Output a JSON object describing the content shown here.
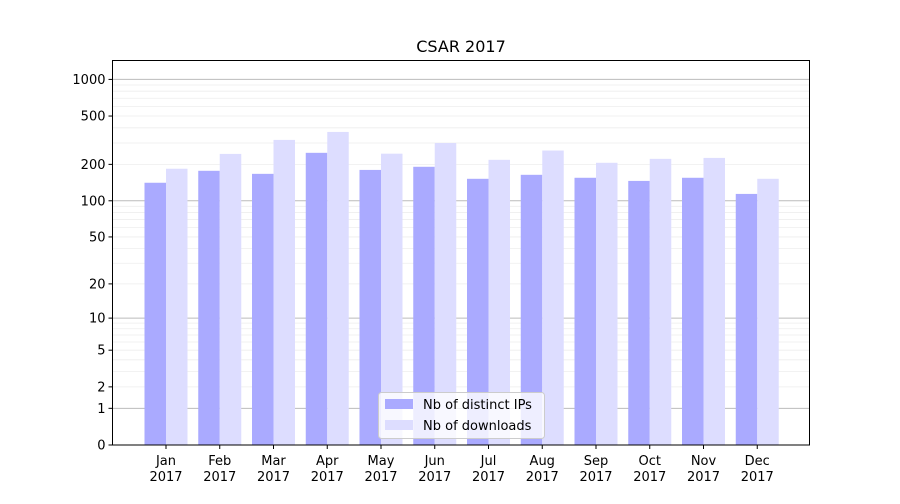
{
  "chart_data": {
    "type": "bar",
    "title": "CSAR 2017",
    "xlabel": "",
    "ylabel": "",
    "y_scale": "log10(y+1)",
    "ylim": [
      0,
      1430
    ],
    "grid": true,
    "legend_position": "bottom-center",
    "categories": [
      "Jan\n2017",
      "Feb\n2017",
      "Mar\n2017",
      "Apr\n2017",
      "May\n2017",
      "Jun\n2017",
      "Jul\n2017",
      "Aug\n2017",
      "Sep\n2017",
      "Oct\n2017",
      "Nov\n2017",
      "Dec\n2017"
    ],
    "y_ticks": [
      0,
      1,
      2,
      5,
      10,
      20,
      50,
      100,
      200,
      500,
      1000
    ],
    "series": [
      {
        "name": "Nb of distinct IPs",
        "color": "#aaaaff",
        "values": [
          141,
          177,
          167,
          249,
          180,
          191,
          152,
          164,
          155,
          146,
          155,
          114
        ]
      },
      {
        "name": "Nb of downloads",
        "color": "#ddddff",
        "values": [
          184,
          244,
          318,
          370,
          245,
          300,
          218,
          260,
          206,
          222,
          226,
          152
        ]
      }
    ]
  }
}
